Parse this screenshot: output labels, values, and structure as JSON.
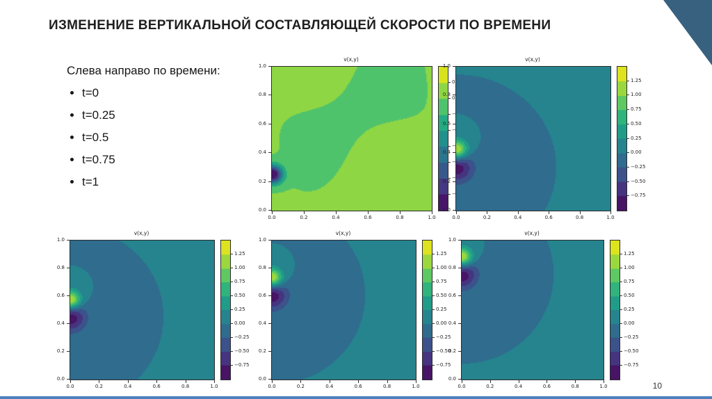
{
  "slide": {
    "title": "ИЗМЕНЕНИЕ ВЕРТИКАЛЬНОЙ СОСТАВЛЯЮЩЕЙ СКОРОСТИ ПО ВРЕМЕНИ",
    "page_number": "10"
  },
  "bullets": {
    "intro": "Слева направо по времени:",
    "items": [
      "t=0",
      "t=0.25",
      "t=0.5",
      "t=0.75",
      "t=1"
    ]
  },
  "theme": {
    "corner_color": "#38617f",
    "accent_bar_color": "#4f81bd",
    "colormap": "viridis"
  },
  "chart_data": [
    {
      "type": "heatmap",
      "title": "v(x,y)",
      "time": "t=0",
      "xlabel": "",
      "ylabel": "",
      "xlim": [
        0,
        1
      ],
      "ylim": [
        0,
        1
      ],
      "x_ticks": [
        "0.0",
        "0.2",
        "0.4",
        "0.6",
        "0.8",
        "1.0"
      ],
      "y_ticks": [
        "0.0",
        "0.2",
        "0.4",
        "0.6",
        "0.8",
        "1.0"
      ],
      "colorbar_ticks": [
        "0.04",
        "0.00",
        "−0.04",
        "−0.08",
        "−0.12",
        "−0.16",
        "−0.20",
        "−0.24"
      ],
      "vmin": -0.28,
      "vmax": 0.08,
      "level_step": 0.04,
      "field": {
        "background": 0.004,
        "ripple_amplitude": 0.01,
        "sources": [
          {
            "x": 0.0,
            "y": 0.25,
            "amplitude": -0.3,
            "sigma": 0.045
          }
        ]
      },
      "description": "Nearly uniform field about 0 (yellow-green) with a small negative spot on the left edge near y=0.25"
    },
    {
      "type": "heatmap",
      "title": "v(x,y)",
      "time": "t=0.25",
      "xlabel": "",
      "ylabel": "",
      "xlim": [
        0,
        1
      ],
      "ylim": [
        0,
        1
      ],
      "x_ticks": [
        "0.0",
        "0.2",
        "0.4",
        "0.6",
        "0.8",
        "1.0"
      ],
      "y_ticks": [
        "0.0",
        "0.2",
        "0.4",
        "0.6",
        "0.8",
        "1.0"
      ],
      "colorbar_ticks": [
        "1.25",
        "1.00",
        "0.75",
        "0.50",
        "0.25",
        "0.00",
        "−0.25",
        "−0.50",
        "−0.75"
      ],
      "vmin": -1.0,
      "vmax": 1.5,
      "level_step": 0.25,
      "field": {
        "background": 0.0,
        "ripple_amplitude": 0,
        "sources": [
          {
            "x": 0.0,
            "y": 0.42,
            "amplitude": 1.45,
            "sigma": 0.05
          },
          {
            "x": 0.0,
            "y": 0.3,
            "amplitude": -0.95,
            "sigma": 0.075
          }
        ]
      },
      "description": "Teal background near 0 with a bright positive peak at the left edge near y=0.42 and a dark negative lobe below it"
    },
    {
      "type": "heatmap",
      "title": "v(x,y)",
      "time": "t=0.5",
      "xlabel": "",
      "ylabel": "",
      "xlim": [
        0,
        1
      ],
      "ylim": [
        0,
        1
      ],
      "x_ticks": [
        "0.0",
        "0.2",
        "0.4",
        "0.6",
        "0.8",
        "1.0"
      ],
      "y_ticks": [
        "0.0",
        "0.2",
        "0.4",
        "0.6",
        "0.8",
        "1.0"
      ],
      "colorbar_ticks": [
        "1.25",
        "1.00",
        "0.75",
        "0.50",
        "0.25",
        "0.00",
        "−0.25",
        "−0.50",
        "−0.75"
      ],
      "vmin": -1.0,
      "vmax": 1.5,
      "level_step": 0.25,
      "field": {
        "background": 0.0,
        "ripple_amplitude": 0,
        "sources": [
          {
            "x": 0.0,
            "y": 0.57,
            "amplitude": 1.45,
            "sigma": 0.05
          },
          {
            "x": 0.0,
            "y": 0.45,
            "amplitude": -0.95,
            "sigma": 0.075
          }
        ]
      },
      "description": "Teal background near 0 with a bright positive peak at the left edge near y=0.57 and a dark negative lobe below it"
    },
    {
      "type": "heatmap",
      "title": "v(x,y)",
      "time": "t=0.75",
      "xlabel": "",
      "ylabel": "",
      "xlim": [
        0,
        1
      ],
      "ylim": [
        0,
        1
      ],
      "x_ticks": [
        "0.0",
        "0.2",
        "0.4",
        "0.6",
        "0.8",
        "1.0"
      ],
      "y_ticks": [
        "0.0",
        "0.2",
        "0.4",
        "0.6",
        "0.8",
        "1.0"
      ],
      "colorbar_ticks": [
        "1.25",
        "1.00",
        "0.75",
        "0.50",
        "0.25",
        "0.00",
        "−0.25",
        "−0.50",
        "−0.75"
      ],
      "vmin": -1.0,
      "vmax": 1.5,
      "level_step": 0.25,
      "field": {
        "background": 0.0,
        "ripple_amplitude": 0,
        "sources": [
          {
            "x": 0.0,
            "y": 0.73,
            "amplitude": 1.45,
            "sigma": 0.05
          },
          {
            "x": 0.0,
            "y": 0.61,
            "amplitude": -0.95,
            "sigma": 0.075
          }
        ]
      },
      "description": "Teal background near 0 with a bright positive peak at the left edge near y=0.73 and a dark negative lobe below it"
    },
    {
      "type": "heatmap",
      "title": "v(x,y)",
      "time": "t=1",
      "xlabel": "",
      "ylabel": "",
      "xlim": [
        0,
        1
      ],
      "ylim": [
        0,
        1
      ],
      "x_ticks": [
        "0.0",
        "0.2",
        "0.4",
        "0.6",
        "0.8",
        "1.0"
      ],
      "y_ticks": [
        "0.0",
        "0.2",
        "0.4",
        "0.6",
        "0.8",
        "1.0"
      ],
      "colorbar_ticks": [
        "1.25",
        "1.00",
        "0.75",
        "0.50",
        "0.25",
        "0.00",
        "−0.25",
        "−0.50",
        "−0.75"
      ],
      "vmin": -1.0,
      "vmax": 1.5,
      "level_step": 0.25,
      "field": {
        "background": 0.0,
        "ripple_amplitude": 0,
        "sources": [
          {
            "x": 0.0,
            "y": 0.88,
            "amplitude": 1.45,
            "sigma": 0.05
          },
          {
            "x": 0.0,
            "y": 0.76,
            "amplitude": -0.95,
            "sigma": 0.075
          }
        ]
      },
      "description": "Teal background near 0 with a bright positive peak at the left edge near y=0.88 and a dark negative lobe below it"
    }
  ]
}
